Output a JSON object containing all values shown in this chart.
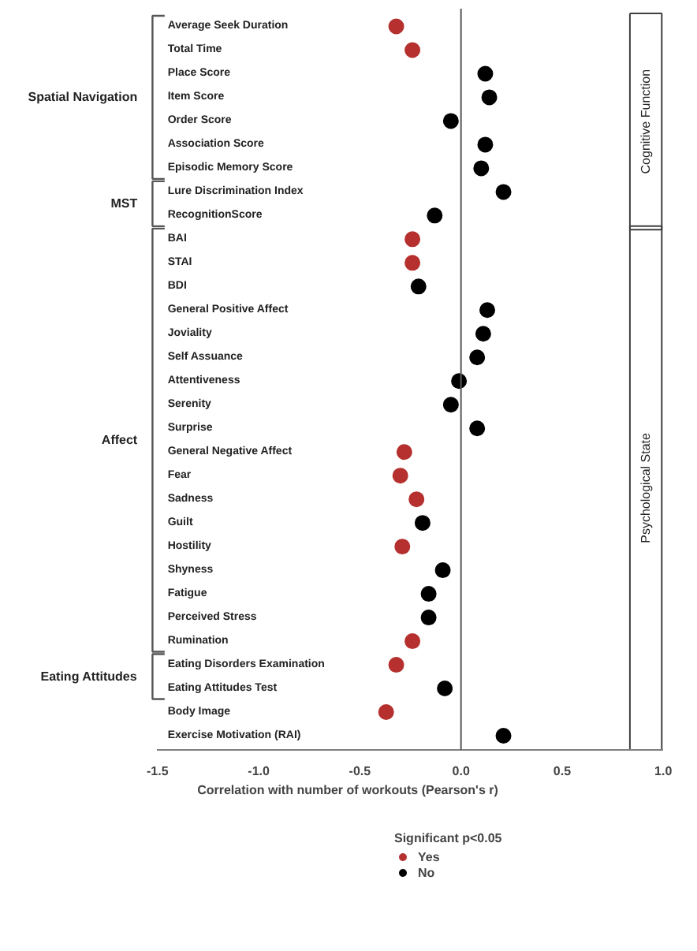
{
  "chart_data": {
    "type": "scatter",
    "xlabel": "Correlation with number of workouts (Pearson's r)",
    "legend_title": "Significant p<0.05",
    "categories": [
      "Average Seek Duration",
      "Total Time",
      "Place Score",
      "Item Score",
      "Order Score",
      "Association Score",
      "Episodic Memory Score",
      "Lure Discrimination Index",
      "RecognitionScore",
      "BAI",
      "STAI",
      "BDI",
      "General Positive Affect",
      "Joviality",
      "Self Assuance",
      "Attentiveness",
      "Serenity",
      "Surprise",
      "General Negative Affect",
      "Fear",
      "Sadness",
      "Guilt",
      "Hostility",
      "Shyness",
      "Fatigue",
      "Perceived Stress",
      "Rumination",
      "Eating Disorders Examination",
      "Eating Attitudes Test",
      "Body Image",
      "Exercise Motivation (RAI)"
    ],
    "orientation": "horizontal",
    "series": [
      {
        "name": "Yes",
        "color": "#b5302e",
        "values": [
          -0.32,
          -0.24,
          null,
          null,
          null,
          null,
          null,
          null,
          null,
          -0.24,
          -0.24,
          null,
          null,
          null,
          null,
          null,
          null,
          null,
          -0.28,
          -0.3,
          -0.22,
          null,
          -0.29,
          null,
          null,
          null,
          -0.24,
          -0.32,
          null,
          -0.37,
          null
        ]
      },
      {
        "name": "No",
        "color": "#000000",
        "values": [
          null,
          null,
          0.12,
          0.14,
          -0.05,
          0.12,
          0.1,
          0.21,
          -0.13,
          null,
          null,
          -0.21,
          0.13,
          0.11,
          0.08,
          -0.01,
          -0.05,
          0.08,
          null,
          null,
          null,
          -0.19,
          null,
          -0.09,
          -0.16,
          -0.16,
          null,
          null,
          -0.08,
          null,
          0.21
        ]
      }
    ],
    "xlim": [
      -1.5,
      1.0
    ],
    "xticks": [
      {
        "value": -1.5,
        "label": "-1.5"
      },
      {
        "value": -1.0,
        "label": "-1.0"
      },
      {
        "value": -0.5,
        "label": "-0.5"
      },
      {
        "value": 0,
        "label": "0.0"
      },
      {
        "value": 0.5,
        "label": "0.5"
      },
      {
        "value": 1.0,
        "label": "1.0"
      }
    ],
    "ref_lines": [
      {
        "axis": "x",
        "value": 0,
        "color": "#595959"
      }
    ],
    "annotations": [
      "Spatial Navigation",
      "MST",
      "Affect",
      "Eating Attitudes",
      "Cognitive Function",
      "Psychological State"
    ],
    "marker": "circle",
    "grid": false,
    "legend": "bottom"
  }
}
